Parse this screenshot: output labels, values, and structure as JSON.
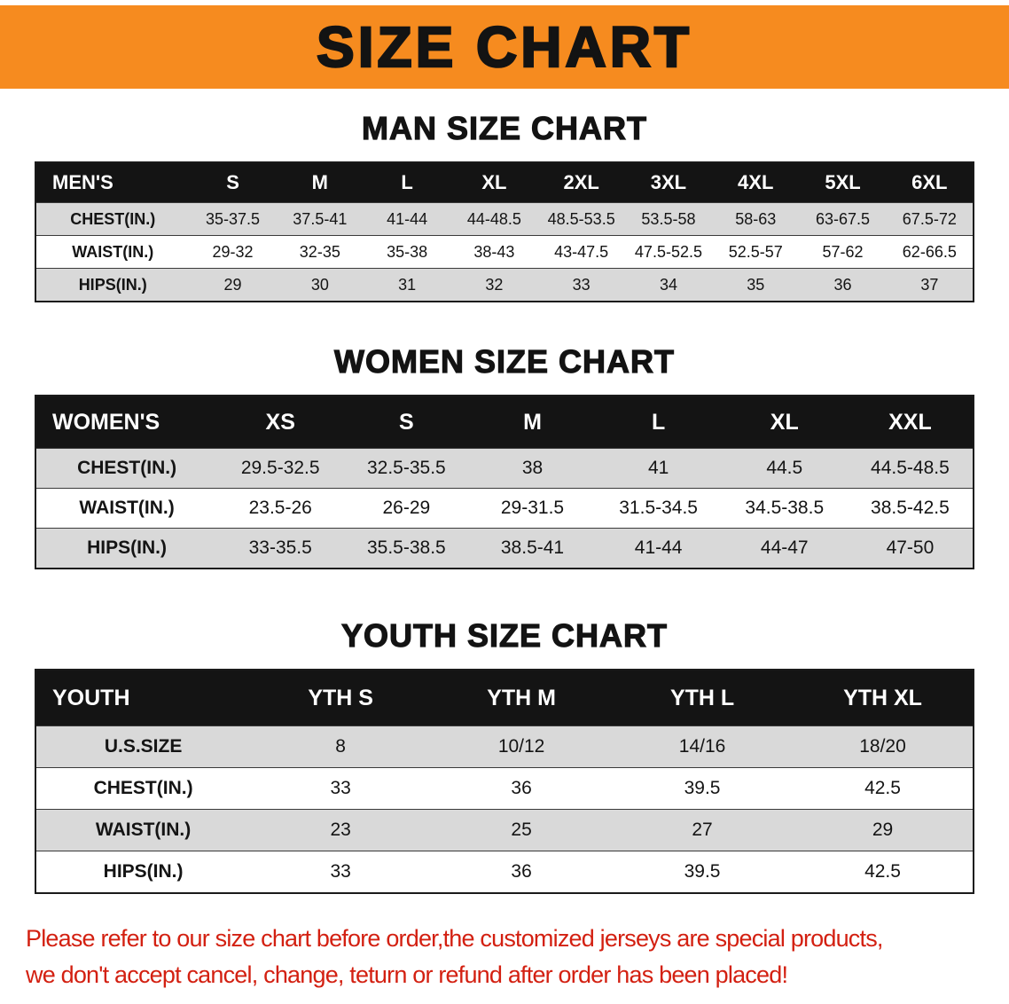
{
  "banner": {
    "title": "SIZE CHART",
    "background_color": "#f68b1f",
    "text_color": "#131313"
  },
  "chart_data": [
    {
      "type": "table",
      "title": "MAN SIZE CHART",
      "columns": [
        "MEN'S",
        "S",
        "M",
        "L",
        "XL",
        "2XL",
        "3XL",
        "4XL",
        "5XL",
        "6XL"
      ],
      "rows": [
        [
          "CHEST(IN.)",
          "35-37.5",
          "37.5-41",
          "41-44",
          "44-48.5",
          "48.5-53.5",
          "53.5-58",
          "58-63",
          "63-67.5",
          "67.5-72"
        ],
        [
          "WAIST(IN.)",
          "29-32",
          "32-35",
          "35-38",
          "38-43",
          "43-47.5",
          "47.5-52.5",
          "52.5-57",
          "57-62",
          "62-66.5"
        ],
        [
          "HIPS(IN.)",
          "29",
          "30",
          "31",
          "32",
          "33",
          "34",
          "35",
          "36",
          "37"
        ]
      ]
    },
    {
      "type": "table",
      "title": "WOMEN SIZE CHART",
      "columns": [
        "WOMEN'S",
        "XS",
        "S",
        "M",
        "L",
        "XL",
        "XXL"
      ],
      "rows": [
        [
          "CHEST(IN.)",
          "29.5-32.5",
          "32.5-35.5",
          "38",
          "41",
          "44.5",
          "44.5-48.5"
        ],
        [
          "WAIST(IN.)",
          "23.5-26",
          "26-29",
          "29-31.5",
          "31.5-34.5",
          "34.5-38.5",
          "38.5-42.5"
        ],
        [
          "HIPS(IN.)",
          "33-35.5",
          "35.5-38.5",
          "38.5-41",
          "41-44",
          "44-47",
          "47-50"
        ]
      ]
    },
    {
      "type": "table",
      "title": "YOUTH SIZE CHART",
      "columns": [
        "YOUTH",
        "YTH S",
        "YTH M",
        "YTH L",
        "YTH XL"
      ],
      "rows": [
        [
          "U.S.SIZE",
          "8",
          "10/12",
          "14/16",
          "18/20"
        ],
        [
          "CHEST(IN.)",
          "33",
          "36",
          "39.5",
          "42.5"
        ],
        [
          "WAIST(IN.)",
          "23",
          "25",
          "27",
          "29"
        ],
        [
          "HIPS(IN.)",
          "33",
          "36",
          "39.5",
          "42.5"
        ]
      ]
    }
  ],
  "disclaimer": {
    "color": "#d32011",
    "lines": [
      "Please refer to our size chart before order,the customized jerseys are special products,",
      "we don't accept cancel, change, teturn or refund after order has been placed!"
    ]
  },
  "colors": {
    "table_header_bg": "#141414",
    "row_stripe": "#d9d9d9"
  }
}
